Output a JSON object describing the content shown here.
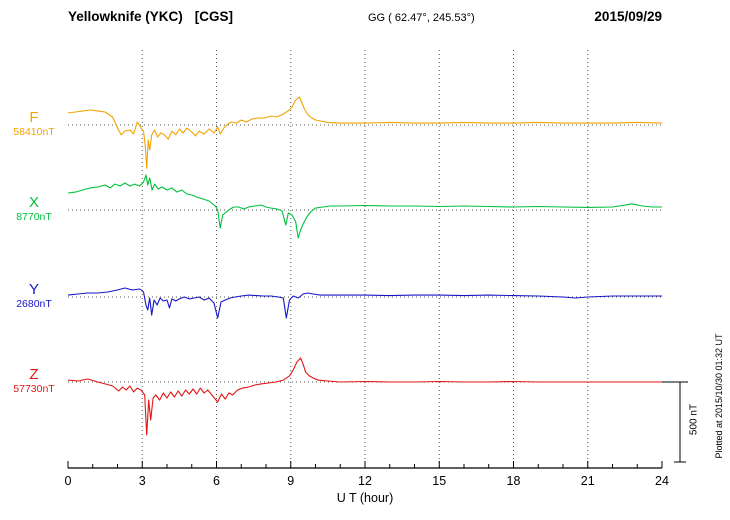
{
  "header": {
    "station": "Yellowknife (YKC)",
    "system": "[CGS]",
    "gg_coords": "GG ( 62.47°, 245.53°)",
    "date": "2015/09/29"
  },
  "footer": {
    "x_axis_label": "U T (hour)"
  },
  "side": {
    "scale_label": "500 nT",
    "plotted_at": "Plotted at 2015/10/30 01:32 UT"
  },
  "colors": {
    "grid": "#555555",
    "axis": "#000000"
  },
  "chart_data": {
    "type": "line",
    "title": "Yellowknife (YKC) [CGS] magnetogram for 2015/09/29",
    "x": {
      "label": "U T (hour)",
      "min": 0,
      "max": 24,
      "ticks": [
        0,
        3,
        6,
        9,
        12,
        15,
        18,
        21,
        24
      ],
      "minor_tick_every": 1,
      "grid_hours": [
        3,
        6,
        9,
        12,
        15,
        18,
        21
      ]
    },
    "y": {
      "unit": "nT",
      "scale_bar_nT": 500,
      "values_relative_to_baseline": true
    },
    "series": [
      {
        "label": "F",
        "baseline_label": "58410nT",
        "baseline_nT": 58410,
        "color": "#f2a400",
        "points": [
          [
            0,
            75
          ],
          [
            0.3,
            81
          ],
          [
            0.6,
            88
          ],
          [
            0.9,
            94
          ],
          [
            1.2,
            88
          ],
          [
            1.5,
            81
          ],
          [
            1.8,
            50
          ],
          [
            2,
            -19
          ],
          [
            2.15,
            -62
          ],
          [
            2.3,
            -38
          ],
          [
            2.5,
            -31
          ],
          [
            2.65,
            -56
          ],
          [
            2.8,
            19
          ],
          [
            2.95,
            -19
          ],
          [
            3.05,
            -38
          ],
          [
            3.12,
            -125
          ],
          [
            3.18,
            -270
          ],
          [
            3.24,
            -94
          ],
          [
            3.3,
            -156
          ],
          [
            3.38,
            -62
          ],
          [
            3.5,
            -31
          ],
          [
            3.62,
            -75
          ],
          [
            3.75,
            -50
          ],
          [
            3.9,
            -62
          ],
          [
            4.05,
            -88
          ],
          [
            4.2,
            -38
          ],
          [
            4.35,
            -62
          ],
          [
            4.5,
            -25
          ],
          [
            4.65,
            -50
          ],
          [
            4.8,
            -19
          ],
          [
            5,
            -44
          ],
          [
            5.15,
            -69
          ],
          [
            5.3,
            -38
          ],
          [
            5.5,
            -56
          ],
          [
            5.7,
            -25
          ],
          [
            5.9,
            -50
          ],
          [
            6.05,
            -12
          ],
          [
            6.15,
            -56
          ],
          [
            6.3,
            -19
          ],
          [
            6.45,
            6
          ],
          [
            6.6,
            19
          ],
          [
            6.8,
            12
          ],
          [
            7,
            31
          ],
          [
            7.2,
            19
          ],
          [
            7.45,
            38
          ],
          [
            7.7,
            44
          ],
          [
            7.95,
            44
          ],
          [
            8.2,
            56
          ],
          [
            8.45,
            50
          ],
          [
            8.7,
            69
          ],
          [
            8.9,
            88
          ],
          [
            9.05,
            112
          ],
          [
            9.2,
            156
          ],
          [
            9.35,
            175
          ],
          [
            9.45,
            138
          ],
          [
            9.55,
            100
          ],
          [
            9.7,
            62
          ],
          [
            9.85,
            44
          ],
          [
            10,
            31
          ],
          [
            10.2,
            25
          ],
          [
            10.5,
            16
          ],
          [
            11,
            12
          ],
          [
            12,
            12
          ],
          [
            13,
            16
          ],
          [
            14,
            12
          ],
          [
            15,
            12
          ],
          [
            16,
            16
          ],
          [
            17,
            12
          ],
          [
            18,
            12
          ],
          [
            19,
            16
          ],
          [
            20,
            12
          ],
          [
            21,
            12
          ],
          [
            22,
            12
          ],
          [
            23,
            16
          ],
          [
            24,
            12
          ]
        ]
      },
      {
        "label": "X",
        "baseline_label": "8770nT",
        "baseline_nT": 8770,
        "color": "#00c03c",
        "points": [
          [
            0,
            106
          ],
          [
            0.3,
            112
          ],
          [
            0.6,
            125
          ],
          [
            0.9,
            138
          ],
          [
            1.2,
            144
          ],
          [
            1.5,
            156
          ],
          [
            1.7,
            138
          ],
          [
            1.9,
            162
          ],
          [
            2.1,
            150
          ],
          [
            2.3,
            169
          ],
          [
            2.5,
            150
          ],
          [
            2.7,
            162
          ],
          [
            2.9,
            150
          ],
          [
            3.05,
            175
          ],
          [
            3.15,
            219
          ],
          [
            3.22,
            156
          ],
          [
            3.3,
            200
          ],
          [
            3.4,
            125
          ],
          [
            3.5,
            162
          ],
          [
            3.65,
            131
          ],
          [
            3.8,
            144
          ],
          [
            4,
            125
          ],
          [
            4.2,
            138
          ],
          [
            4.4,
            112
          ],
          [
            4.6,
            125
          ],
          [
            4.8,
            100
          ],
          [
            5,
            94
          ],
          [
            5.2,
            81
          ],
          [
            5.45,
            69
          ],
          [
            5.7,
            56
          ],
          [
            5.95,
            25
          ],
          [
            6.05,
            0
          ],
          [
            6.15,
            -113
          ],
          [
            6.25,
            -31
          ],
          [
            6.4,
            -12
          ],
          [
            6.55,
            6
          ],
          [
            6.7,
            19
          ],
          [
            6.9,
            19
          ],
          [
            7.1,
            6
          ],
          [
            7.3,
            19
          ],
          [
            7.55,
            25
          ],
          [
            7.8,
            31
          ],
          [
            8,
            19
          ],
          [
            8.2,
            12
          ],
          [
            8.45,
            6
          ],
          [
            8.65,
            -6
          ],
          [
            8.8,
            -94
          ],
          [
            8.9,
            -19
          ],
          [
            9.05,
            -31
          ],
          [
            9.2,
            -75
          ],
          [
            9.3,
            -175
          ],
          [
            9.4,
            -125
          ],
          [
            9.5,
            -88
          ],
          [
            9.65,
            -44
          ],
          [
            9.8,
            -12
          ],
          [
            10,
            12
          ],
          [
            10.3,
            19
          ],
          [
            10.6,
            25
          ],
          [
            11,
            25
          ],
          [
            12,
            28
          ],
          [
            13,
            25
          ],
          [
            14,
            25
          ],
          [
            15,
            22
          ],
          [
            16,
            25
          ],
          [
            17,
            22
          ],
          [
            18,
            19
          ],
          [
            19,
            22
          ],
          [
            20,
            19
          ],
          [
            21,
            16
          ],
          [
            22,
            19
          ],
          [
            22.8,
            38
          ],
          [
            23.2,
            25
          ],
          [
            23.6,
            19
          ],
          [
            24,
            19
          ]
        ]
      },
      {
        "label": "Y",
        "baseline_label": "2680nT",
        "baseline_nT": 2680,
        "color": "#1616c8",
        "points": [
          [
            0,
            12
          ],
          [
            0.4,
            19
          ],
          [
            0.8,
            25
          ],
          [
            1.2,
            25
          ],
          [
            1.6,
            31
          ],
          [
            2,
            44
          ],
          [
            2.3,
            56
          ],
          [
            2.6,
            44
          ],
          [
            2.9,
            50
          ],
          [
            3.05,
            31
          ],
          [
            3.15,
            -50
          ],
          [
            3.22,
            -81
          ],
          [
            3.3,
            -6
          ],
          [
            3.38,
            -113
          ],
          [
            3.48,
            -19
          ],
          [
            3.6,
            -50
          ],
          [
            3.72,
            -6
          ],
          [
            3.85,
            -25
          ],
          [
            4,
            -19
          ],
          [
            4.1,
            -69
          ],
          [
            4.2,
            -12
          ],
          [
            4.35,
            -25
          ],
          [
            4.5,
            -12
          ],
          [
            4.7,
            0
          ],
          [
            4.9,
            -12
          ],
          [
            5.1,
            -6
          ],
          [
            5.3,
            0
          ],
          [
            5.5,
            -19
          ],
          [
            5.7,
            -6
          ],
          [
            5.9,
            -38
          ],
          [
            6.05,
            -131
          ],
          [
            6.18,
            -31
          ],
          [
            6.35,
            -19
          ],
          [
            6.55,
            -6
          ],
          [
            6.75,
            0
          ],
          [
            7,
            6
          ],
          [
            7.3,
            12
          ],
          [
            7.6,
            9
          ],
          [
            7.9,
            6
          ],
          [
            8.2,
            6
          ],
          [
            8.5,
            0
          ],
          [
            8.7,
            -6
          ],
          [
            8.82,
            -131
          ],
          [
            8.95,
            -19
          ],
          [
            9.1,
            6
          ],
          [
            9.3,
            -6
          ],
          [
            9.5,
            19
          ],
          [
            9.7,
            25
          ],
          [
            9.9,
            19
          ],
          [
            10.2,
            12
          ],
          [
            10.6,
            12
          ],
          [
            11,
            12
          ],
          [
            12,
            12
          ],
          [
            13,
            9
          ],
          [
            14,
            12
          ],
          [
            15,
            12
          ],
          [
            16,
            9
          ],
          [
            17,
            12
          ],
          [
            18,
            9
          ],
          [
            19,
            6
          ],
          [
            20,
            0
          ],
          [
            20.5,
            -6
          ],
          [
            21,
            0
          ],
          [
            22,
            6
          ],
          [
            23,
            6
          ],
          [
            24,
            6
          ]
        ]
      },
      {
        "label": "Z",
        "baseline_label": "57730nT",
        "baseline_nT": 57730,
        "color": "#e41414",
        "points": [
          [
            0,
            12
          ],
          [
            0.4,
            6
          ],
          [
            0.8,
            19
          ],
          [
            1.2,
            0
          ],
          [
            1.5,
            -12
          ],
          [
            1.8,
            -25
          ],
          [
            2.05,
            -56
          ],
          [
            2.2,
            -31
          ],
          [
            2.35,
            -50
          ],
          [
            2.5,
            -25
          ],
          [
            2.65,
            -62
          ],
          [
            2.8,
            -38
          ],
          [
            2.95,
            -50
          ],
          [
            3.1,
            -81
          ],
          [
            3.18,
            -331
          ],
          [
            3.26,
            -113
          ],
          [
            3.34,
            -237
          ],
          [
            3.44,
            -100
          ],
          [
            3.55,
            -81
          ],
          [
            3.7,
            -113
          ],
          [
            3.85,
            -69
          ],
          [
            4,
            -100
          ],
          [
            4.15,
            -62
          ],
          [
            4.3,
            -94
          ],
          [
            4.45,
            -56
          ],
          [
            4.6,
            -88
          ],
          [
            4.75,
            -50
          ],
          [
            4.9,
            -75
          ],
          [
            5.05,
            -44
          ],
          [
            5.2,
            -75
          ],
          [
            5.35,
            -38
          ],
          [
            5.5,
            -69
          ],
          [
            5.65,
            -50
          ],
          [
            5.85,
            -88
          ],
          [
            6.05,
            -125
          ],
          [
            6.2,
            -75
          ],
          [
            6.35,
            -106
          ],
          [
            6.5,
            -69
          ],
          [
            6.65,
            -81
          ],
          [
            6.85,
            -50
          ],
          [
            7.05,
            -38
          ],
          [
            7.3,
            -31
          ],
          [
            7.55,
            -19
          ],
          [
            7.8,
            -12
          ],
          [
            8.1,
            -6
          ],
          [
            8.4,
            0
          ],
          [
            8.7,
            12
          ],
          [
            8.95,
            38
          ],
          [
            9.1,
            75
          ],
          [
            9.25,
            125
          ],
          [
            9.4,
            150
          ],
          [
            9.5,
            112
          ],
          [
            9.6,
            62
          ],
          [
            9.75,
            38
          ],
          [
            9.9,
            25
          ],
          [
            10.1,
            12
          ],
          [
            10.5,
            6
          ],
          [
            11,
            0
          ],
          [
            12,
            3
          ],
          [
            13,
            0
          ],
          [
            14,
            0
          ],
          [
            15,
            3
          ],
          [
            16,
            0
          ],
          [
            17,
            0
          ],
          [
            18,
            3
          ],
          [
            19,
            0
          ],
          [
            20,
            0
          ],
          [
            21,
            0
          ],
          [
            22,
            0
          ],
          [
            23,
            0
          ],
          [
            24,
            0
          ]
        ]
      }
    ]
  }
}
